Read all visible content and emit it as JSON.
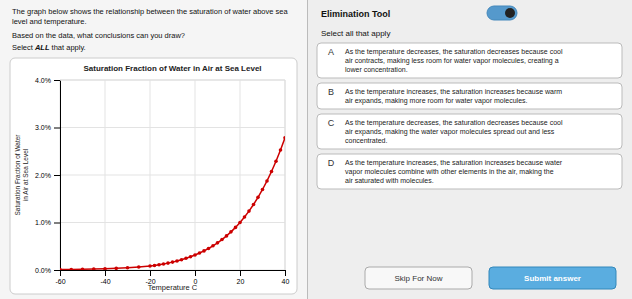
{
  "chart_data": {
    "type": "line",
    "title": "Saturation Fraction of Water in Air at Sea Level",
    "xlabel": "Temperature C",
    "ylabel": "Saturation Fraction of Water\nin Air at Sea Level",
    "x": [
      -60,
      -55,
      -50,
      -45,
      -40,
      -35,
      -30,
      -25,
      -20,
      -18,
      -16,
      -14,
      -12,
      -10,
      -8,
      -6,
      -4,
      -2,
      0,
      2,
      4,
      6,
      8,
      10,
      12,
      14,
      16,
      18,
      20,
      22,
      24,
      26,
      28,
      30,
      32,
      34,
      36,
      38,
      40
    ],
    "values": [
      0.0001,
      0.00012,
      0.00016,
      0.0002,
      0.00027,
      0.00036,
      0.00047,
      0.00063,
      0.00083,
      0.00096,
      0.0011,
      0.00127,
      0.00145,
      0.00166,
      0.0019,
      0.00216,
      0.00246,
      0.00279,
      0.00316,
      0.00357,
      0.00402,
      0.00453,
      0.00509,
      0.00572,
      0.00641,
      0.00718,
      0.00803,
      0.00897,
      0.01001,
      0.01115,
      0.0124,
      0.01378,
      0.0153,
      0.01695,
      0.01875,
      0.02073,
      0.02289,
      0.02525,
      0.02782
    ],
    "color": "#cc0000",
    "marker": "circle",
    "xlim": [
      -60,
      40
    ],
    "ylim": [
      0.0,
      0.04
    ],
    "xticks": [
      -60,
      -40,
      -20,
      0,
      20,
      40
    ],
    "yticks": [
      {
        "value": 0.0,
        "label": "0.0%"
      },
      {
        "value": 0.01,
        "label": "1.0%"
      },
      {
        "value": 0.02,
        "label": "2.0%"
      },
      {
        "value": 0.03,
        "label": "3.0%"
      },
      {
        "value": 0.04,
        "label": "4.0%"
      }
    ],
    "grid": true
  },
  "question_panel": {
    "title_text": "The graph below shows the relationship between the saturation of water above sea\nlevel and temperature.",
    "question_text": "Based on the data, what conclusions can you draw?",
    "select_text": "Select ",
    "select_bold": "ALL",
    "select_rest": " that apply."
  },
  "answer_panel": {
    "elim_tool_text": "Elimination Tool",
    "select_all_text": "Select all that apply",
    "options": [
      {
        "letter": "A",
        "text": "As the temperature decreases, the saturation decreases because cool\nair contracts, making less room for water vapor molecules, creating a\nlower concentration."
      },
      {
        "letter": "B",
        "text": "As the temperature increases, the saturation increases because warm\nair expands, making more room for water vapor molecules."
      },
      {
        "letter": "C",
        "text": "As the temperature decreases, the saturation decreases because cool\nair expands, making the water vapor molecules spread out and less\nconcentrated."
      },
      {
        "letter": "D",
        "text": "As the temperature increases, the saturation increases because water\nvapor molecules combine with other elements in the air, making the\nair saturated with molecules."
      }
    ],
    "skip_btn_text": "Skip For Now",
    "submit_btn_text": "Submit answer"
  }
}
